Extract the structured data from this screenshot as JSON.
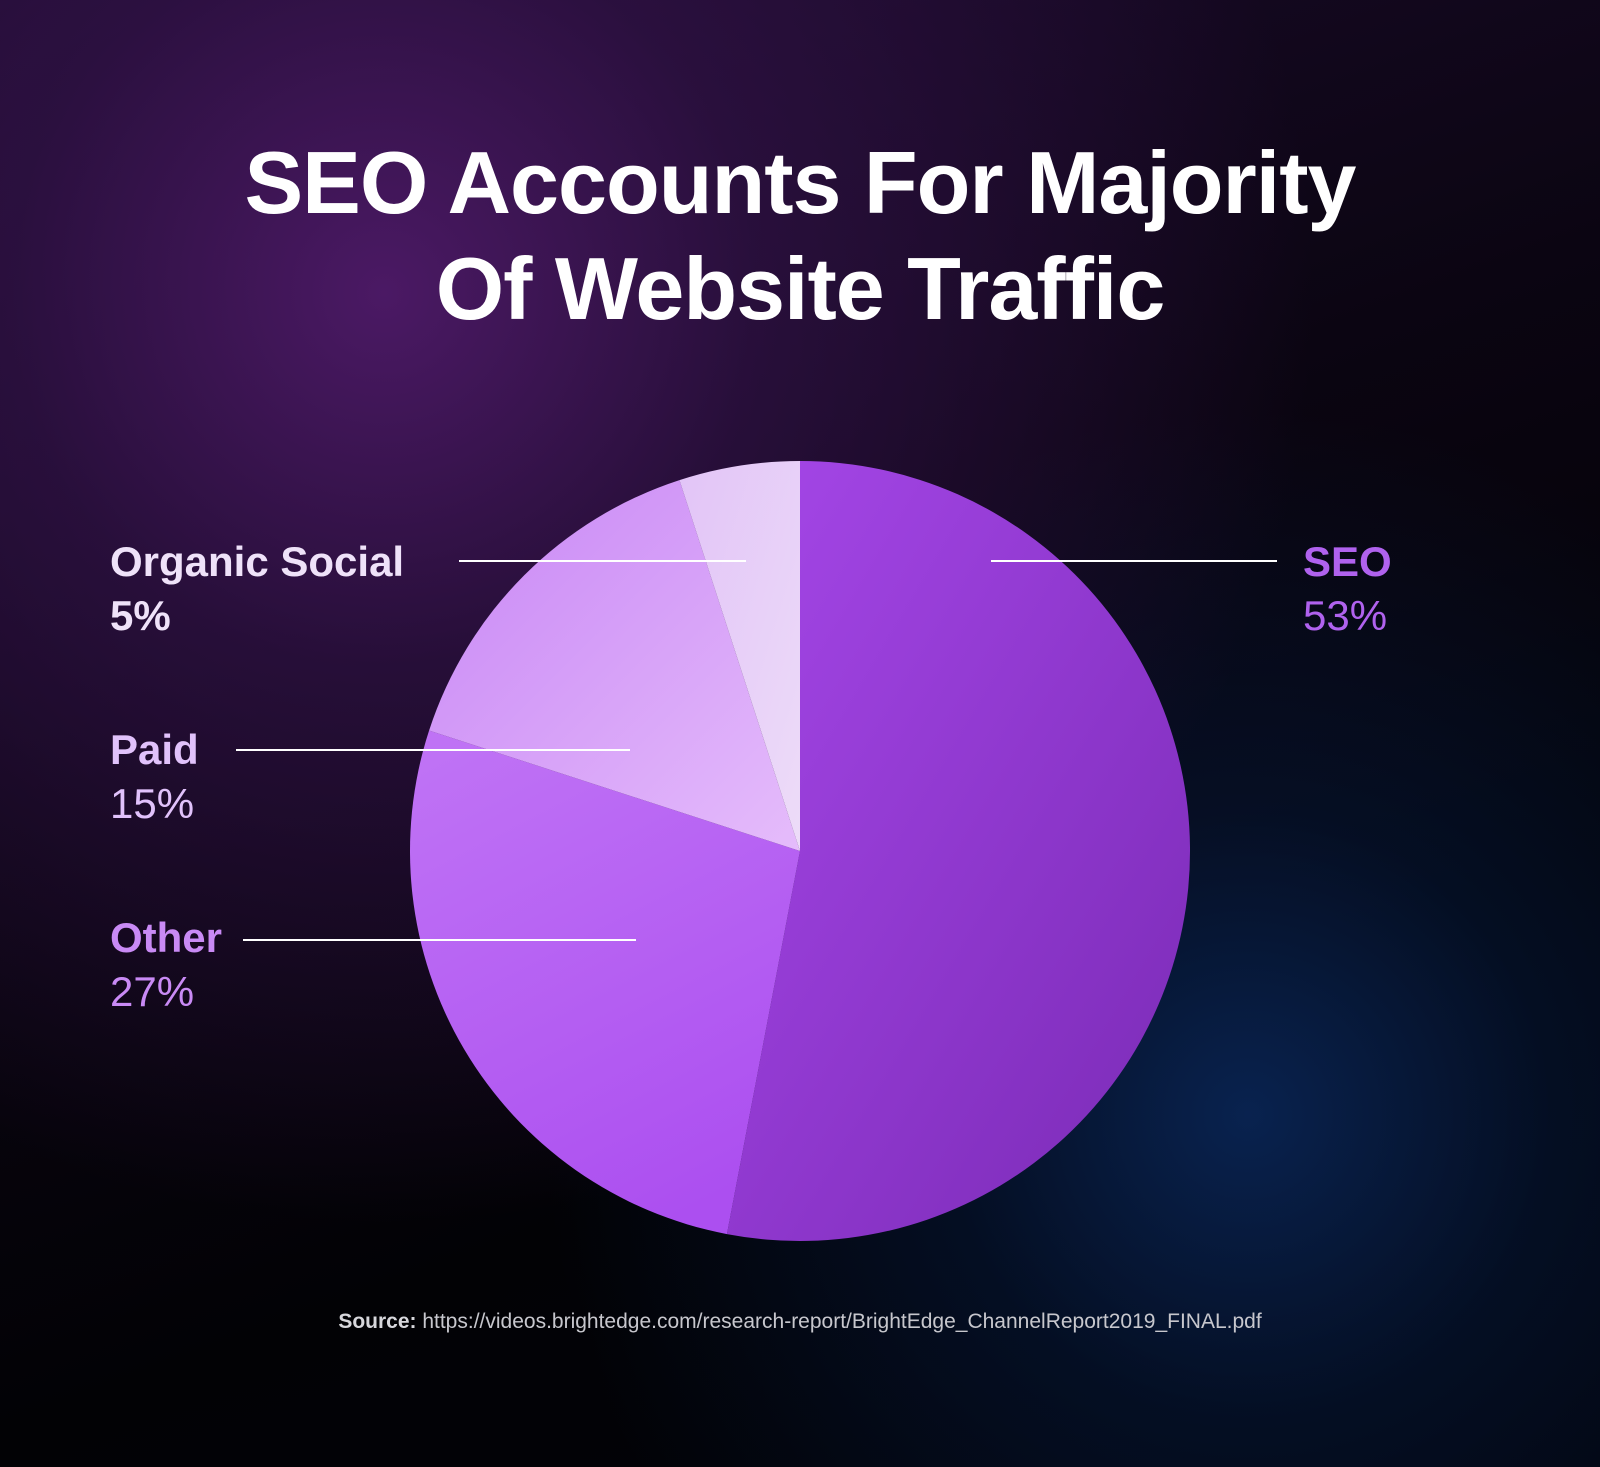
{
  "title": {
    "line1": "SEO Accounts For Majority",
    "line2": "Of Website Traffic"
  },
  "chart_data": {
    "type": "pie",
    "title": "SEO Accounts For Majority Of Website Traffic",
    "slices": [
      {
        "label": "SEO",
        "value": 53,
        "value_label": "53%",
        "color": "#9b3fe0",
        "label_color": "#b062ee"
      },
      {
        "label": "Other",
        "value": 27,
        "value_label": "27%",
        "color": "#b866f4",
        "label_color": "#c98af5"
      },
      {
        "label": "Paid",
        "value": 15,
        "value_label": "15%",
        "color": "#d19cf8",
        "label_color": "#e1c2fb"
      },
      {
        "label": "Organic Social",
        "value": 5,
        "value_label": "5%",
        "color": "#e8d2f8",
        "label_color": "#efe2f9"
      }
    ],
    "start": "12 o'clock",
    "direction": "clockwise"
  },
  "labels": {
    "seo": {
      "name": "SEO",
      "value": "53%"
    },
    "organic_social": {
      "name": "Organic Social",
      "value": "5%"
    },
    "paid": {
      "name": "Paid",
      "value": "15%"
    },
    "other": {
      "name": "Other",
      "value": "27%"
    }
  },
  "source": {
    "prefix": "Source:",
    "url": " https://videos.brightedge.com/research-report/BrightEdge_ChannelReport2019_FINAL.pdf"
  }
}
